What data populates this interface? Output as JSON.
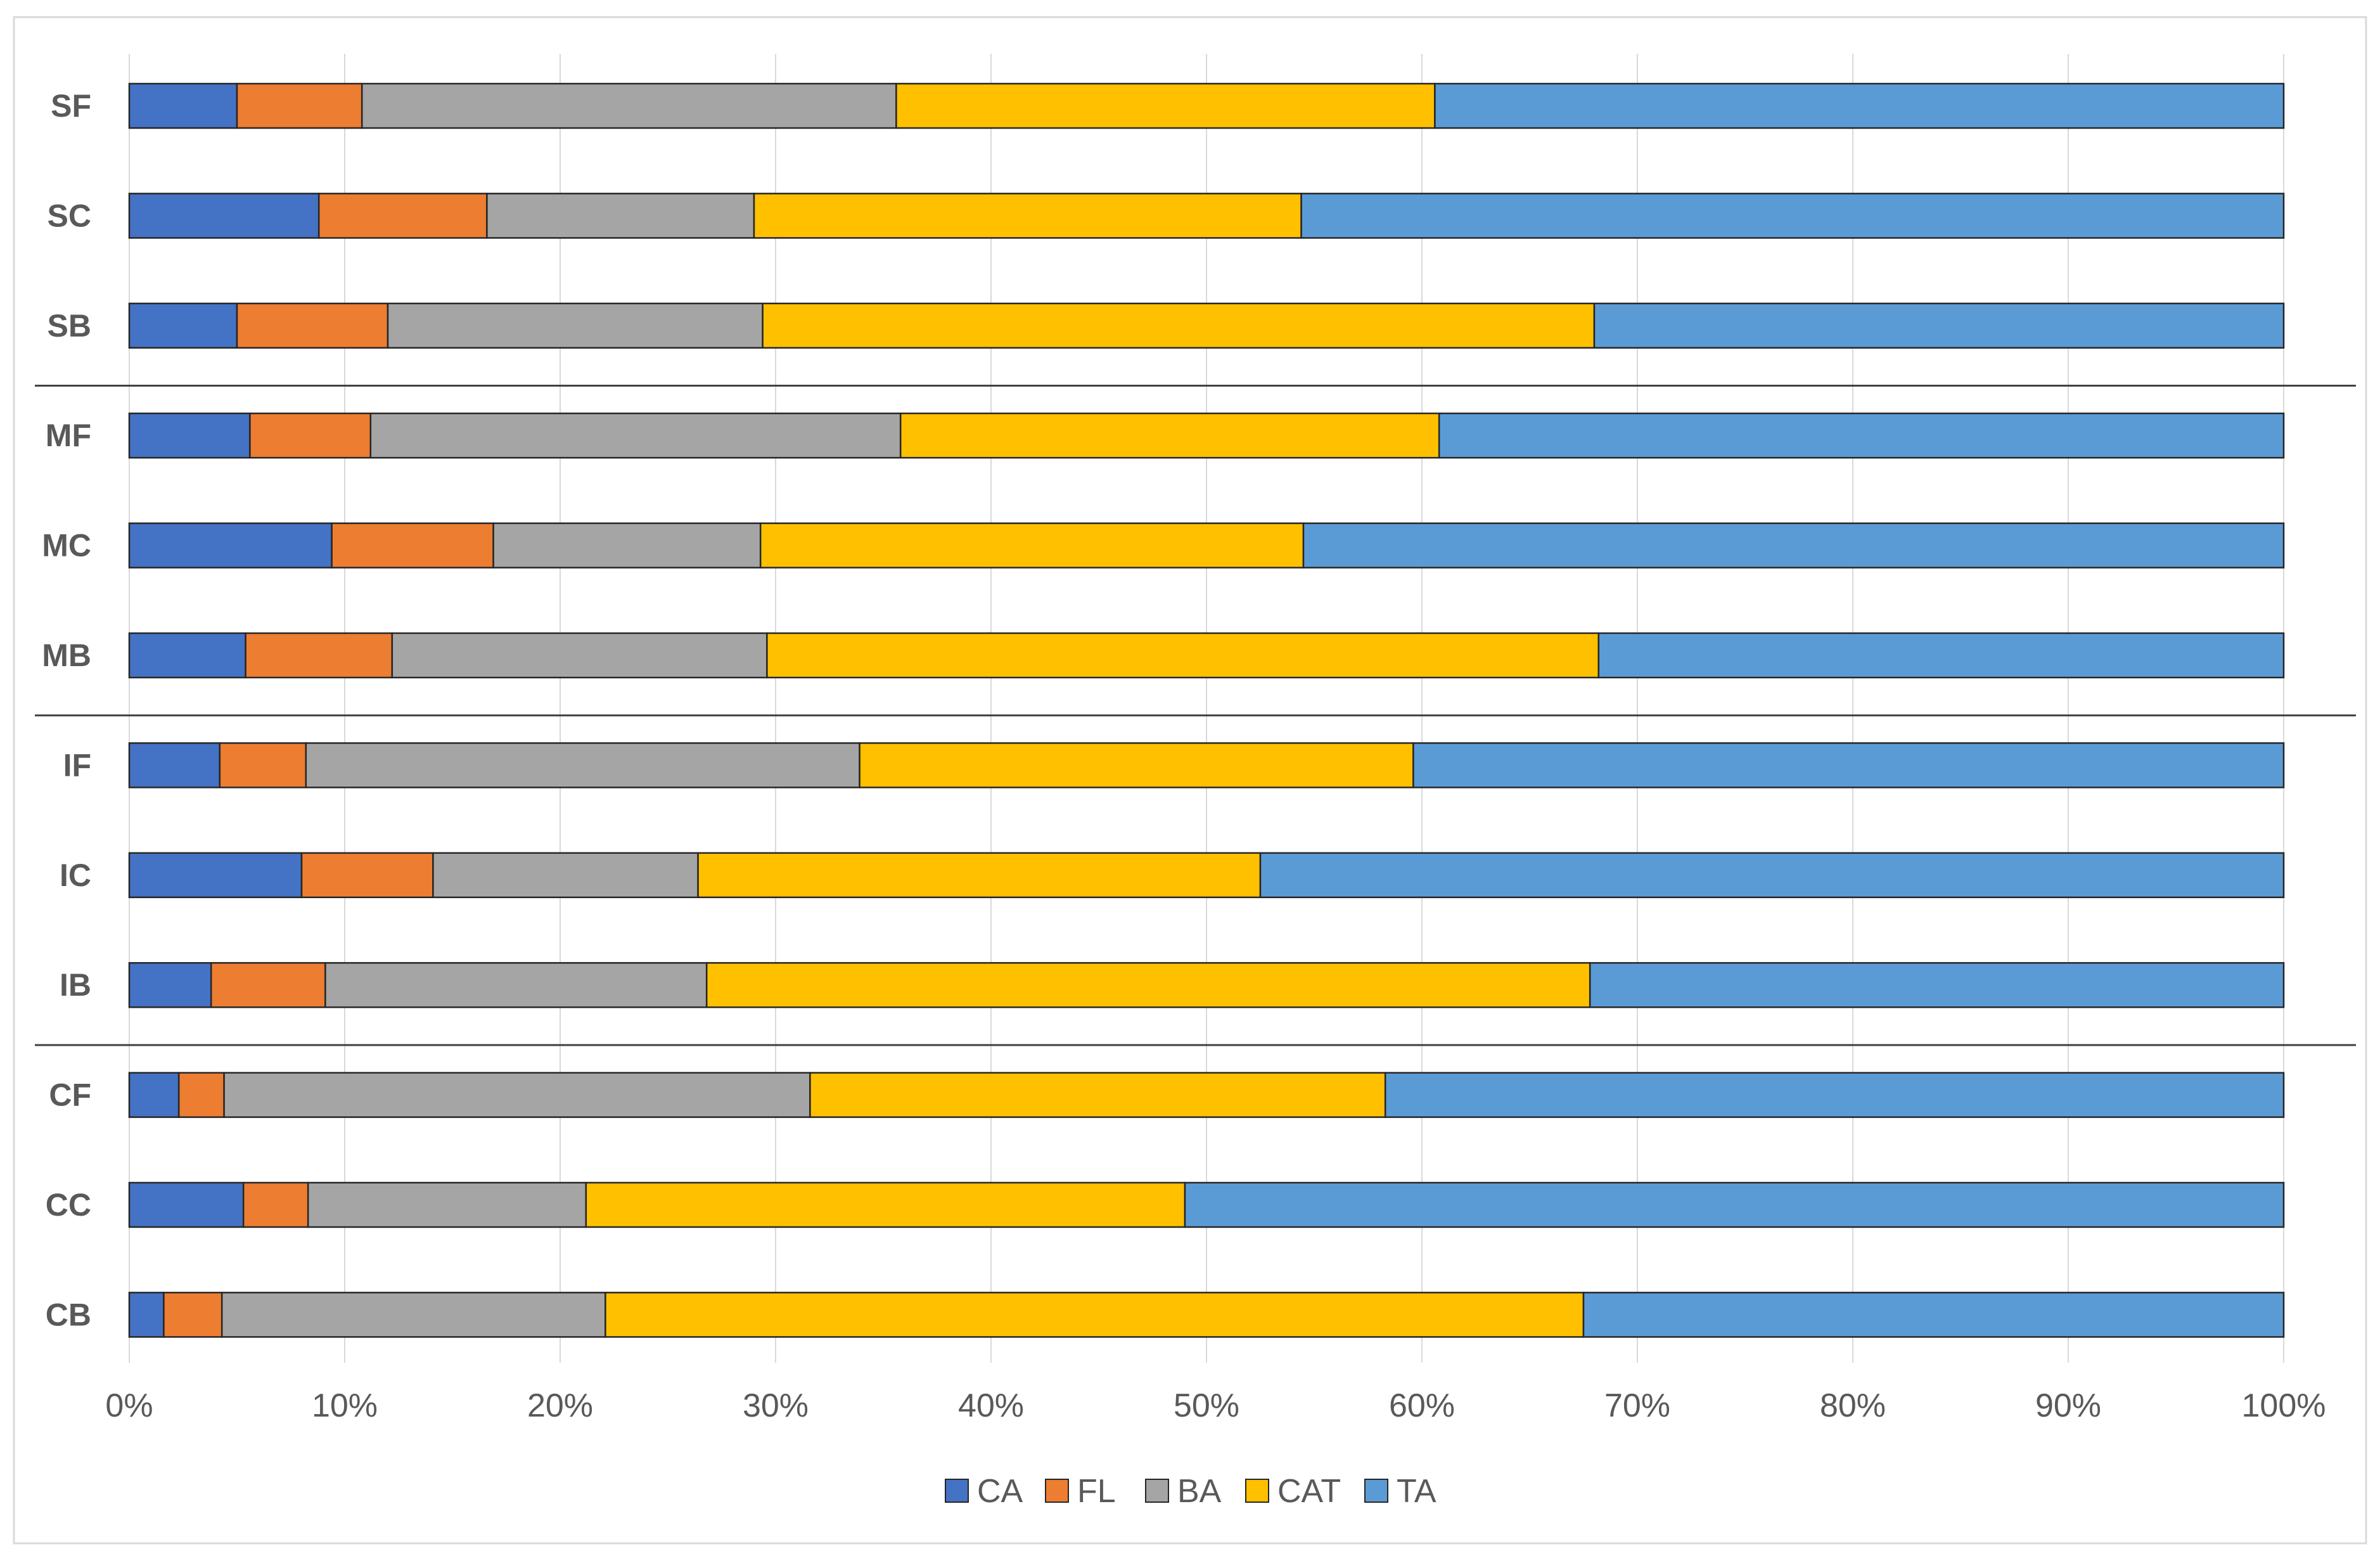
{
  "chart_data": {
    "type": "bar",
    "orientation": "horizontal",
    "stacked": "percent",
    "title": "",
    "xlabel": "",
    "ylabel": "",
    "xlim": [
      0,
      100
    ],
    "x_ticks": [
      "0%",
      "10%",
      "20%",
      "30%",
      "40%",
      "50%",
      "60%",
      "70%",
      "80%",
      "90%",
      "100%"
    ],
    "grid": true,
    "legend_position": "bottom",
    "categories": [
      "SF",
      "SC",
      "SB",
      "MF",
      "MC",
      "MB",
      "IF",
      "IC",
      "IB",
      "CF",
      "CC",
      "CB"
    ],
    "group_separators_after": [
      "SB",
      "MB",
      "IB"
    ],
    "series": [
      {
        "name": "CA",
        "color": "#4472C4",
        "values": [
          5.0,
          8.8,
          5.0,
          5.6,
          9.4,
          5.4,
          4.2,
          8.0,
          3.8,
          2.3,
          5.3,
          1.6
        ]
      },
      {
        "name": "FL",
        "color": "#ED7D31",
        "values": [
          5.8,
          7.8,
          7.0,
          5.6,
          7.5,
          6.8,
          4.0,
          6.1,
          5.3,
          2.1,
          3.0,
          2.7
        ]
      },
      {
        "name": "BA",
        "color": "#A5A5A5",
        "values": [
          24.8,
          12.4,
          17.4,
          24.6,
          12.4,
          17.4,
          25.7,
          12.3,
          17.7,
          27.2,
          12.9,
          17.8
        ]
      },
      {
        "name": "CAT",
        "color": "#FFC000",
        "values": [
          25.0,
          25.4,
          38.6,
          25.0,
          25.2,
          38.6,
          25.7,
          26.1,
          41.0,
          26.7,
          27.8,
          45.4
        ]
      },
      {
        "name": "TA",
        "color": "#5B9BD5",
        "values": [
          39.4,
          45.6,
          32.0,
          39.2,
          45.5,
          31.8,
          40.4,
          47.5,
          32.2,
          41.7,
          51.0,
          32.5
        ]
      }
    ]
  }
}
